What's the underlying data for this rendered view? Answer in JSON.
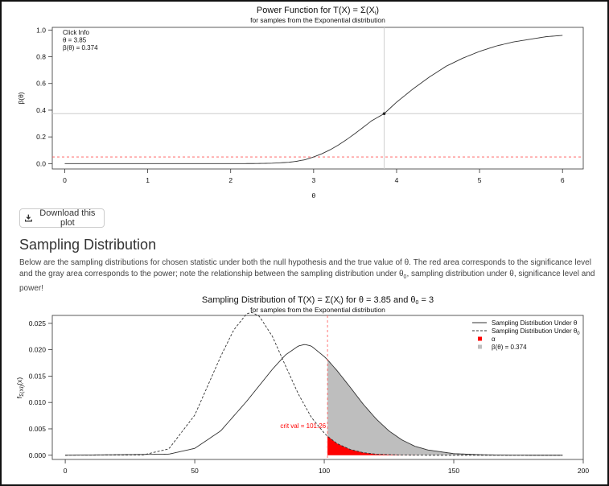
{
  "download_button": {
    "label": "Download this plot",
    "icon": "download-icon"
  },
  "section": {
    "title": "Sampling Distribution",
    "desc_part1": "Below are the sampling distributions for chosen statistic under both the null hypothesis and the true value of θ. The red area corresponds to the significance level and the gray area corresponds to the power; note the relationship between the sampling distribution under θ",
    "desc_sub": "0",
    "desc_part2": ", sampling distribution under θ, significance level and power!"
  },
  "colors": {
    "alpha": "#ff0000",
    "power": "#bebebe",
    "curve": "#333333",
    "crit_line": "#ff5555"
  },
  "chart_data": [
    {
      "type": "line",
      "title": "Power Function for T(X) = Σ(Xi)",
      "subtitle": "for samples from the Exponential distribution",
      "xlabel": "θ",
      "ylabel": "β(θ)",
      "xlim": [
        -0.15,
        6.25
      ],
      "ylim": [
        -0.04,
        1.02
      ],
      "xticks": [
        0,
        1,
        2,
        3,
        4,
        5,
        6
      ],
      "yticks": [
        0.0,
        0.2,
        0.4,
        0.6,
        0.8,
        1.0
      ],
      "ytick_labels": [
        "0.0",
        "0.2",
        "0.4",
        "0.6",
        "0.8",
        "1.0"
      ],
      "alpha_level": 0.05,
      "click": {
        "theta": 3.85,
        "power": 0.374
      },
      "click_info": [
        "Click Info",
        "θ = 3.85",
        "β(θ) = 0.374"
      ],
      "series": [
        {
          "x": [
            0,
            0.5,
            1,
            1.5,
            2,
            2.3,
            2.5,
            2.7,
            2.8,
            2.9,
            3.0,
            3.1,
            3.2,
            3.3,
            3.4,
            3.5,
            3.6,
            3.7,
            3.85,
            4.0,
            4.2,
            4.4,
            4.6,
            4.8,
            5.0,
            5.2,
            5.4,
            5.6,
            5.8,
            6.0
          ],
          "y": [
            0,
            0,
            0,
            0,
            0.0001,
            0.0008,
            0.003,
            0.01,
            0.018,
            0.03,
            0.05,
            0.074,
            0.104,
            0.14,
            0.181,
            0.226,
            0.273,
            0.321,
            0.374,
            0.46,
            0.56,
            0.65,
            0.73,
            0.79,
            0.84,
            0.88,
            0.91,
            0.93,
            0.95,
            0.96
          ]
        }
      ]
    },
    {
      "type": "area",
      "title": "Sampling Distribution of T(X) = Σ(Xi) for θ = 3.85 and θ0 = 3",
      "subtitle": "for samples from the Exponential distribution",
      "ylabel": "fΣ(Xi)(x)",
      "xlim": [
        -5,
        200
      ],
      "ylim": [
        -0.0008,
        0.0265
      ],
      "xticks": [
        0,
        50,
        100,
        150,
        200
      ],
      "yticks": [
        0.0,
        0.005,
        0.01,
        0.015,
        0.02,
        0.025
      ],
      "ytick_labels": [
        "0.000",
        "0.005",
        "0.010",
        "0.015",
        "0.020",
        "0.025"
      ],
      "crit_val": 101.26,
      "crit_label": "crit val = 101.26",
      "legend_position": "top-right",
      "legend": [
        "Sampling Distribution Under θ",
        "Sampling Distribution Under θ0",
        "α",
        "β(θ) = 0.374"
      ],
      "series": [
        {
          "name": "Sampling Distribution Under θ",
          "x": [
            0,
            40,
            50,
            60,
            70,
            80,
            85,
            90,
            92.4,
            95,
            100,
            101.26,
            105,
            110,
            115,
            120,
            125,
            130,
            135,
            140,
            150,
            160,
            170,
            180,
            192
          ],
          "y": [
            0,
            0.0002,
            0.0013,
            0.0046,
            0.0102,
            0.0163,
            0.019,
            0.0207,
            0.021,
            0.0207,
            0.0187,
            0.0181,
            0.016,
            0.0129,
            0.0097,
            0.0069,
            0.0046,
            0.0029,
            0.0017,
            0.001,
            0.0003,
            0.0001,
            2e-05,
            0.0,
            0.0
          ]
        },
        {
          "name": "Sampling Distribution Under θ0",
          "x": [
            0,
            30,
            40,
            50,
            60,
            65,
            70,
            72,
            75,
            80,
            85,
            90,
            95,
            100,
            101.26,
            105,
            110,
            115,
            120,
            130,
            140,
            150,
            160,
            192
          ],
          "y": [
            0,
            5e-05,
            0.0012,
            0.0076,
            0.0187,
            0.0237,
            0.0268,
            0.0271,
            0.0263,
            0.0225,
            0.017,
            0.0116,
            0.0072,
            0.0042,
            0.0036,
            0.0022,
            0.0011,
            0.0005,
            0.0002,
            3e-05,
            0.0,
            0.0,
            0.0,
            0.0
          ]
        }
      ]
    }
  ]
}
